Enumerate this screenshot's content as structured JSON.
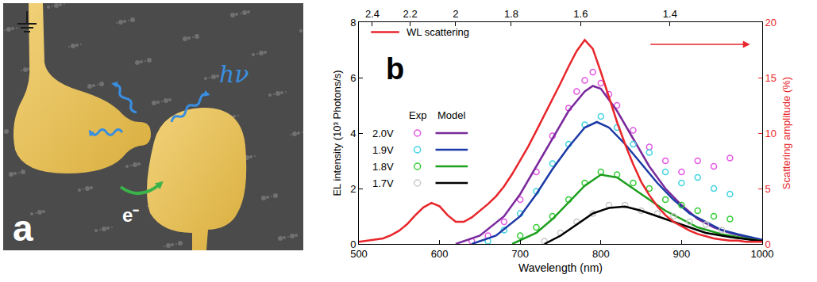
{
  "panel_a": {
    "label": "a",
    "photon_label": "hν",
    "electron_label": "e⁻"
  },
  "chart_data": {
    "type": "scatter",
    "label": "b",
    "x_label": "Wavelength (nm)",
    "y_label": "EL intensity (10³ Photons/s)",
    "y2_label": "Scattering amplitude (%)",
    "xlim": [
      500,
      1000
    ],
    "xticks": [
      500,
      600,
      700,
      800,
      900,
      1000
    ],
    "x2lim": [
      500,
      1000
    ],
    "x2ticks": [
      {
        "value": 516.7,
        "label": "2.4"
      },
      {
        "value": 563.6,
        "label": "2.2"
      },
      {
        "value": 620,
        "label": "2"
      },
      {
        "value": 688.9,
        "label": "1.8"
      },
      {
        "value": 775,
        "label": "1.6"
      },
      {
        "value": 885.7,
        "label": "1.4"
      }
    ],
    "ylim": [
      0,
      8
    ],
    "yticks": [
      0,
      2,
      4,
      6,
      8
    ],
    "y2lim": [
      0,
      20
    ],
    "y2ticks": [
      0,
      5,
      10,
      15,
      20
    ],
    "grid": false,
    "legend_columns": [
      "Exp",
      "Model"
    ],
    "series": [
      {
        "name": "WL scattering",
        "type": "line",
        "axis": "y2",
        "color": "#e8262b",
        "x": [
          500,
          510,
          520,
          530,
          540,
          550,
          560,
          570,
          580,
          590,
          600,
          610,
          620,
          630,
          640,
          650,
          660,
          670,
          680,
          690,
          700,
          710,
          720,
          730,
          740,
          750,
          760,
          770,
          780,
          790,
          800,
          810,
          820,
          830,
          840,
          850,
          860,
          870,
          880,
          890,
          900,
          910,
          920,
          930,
          940,
          950,
          960,
          970,
          980,
          990,
          1000
        ],
        "values": [
          0.2,
          0.3,
          0.4,
          0.5,
          0.8,
          1.2,
          1.8,
          2.6,
          3.3,
          3.7,
          3.4,
          2.6,
          2.0,
          2.0,
          2.4,
          3.0,
          3.6,
          4.3,
          5.2,
          6.3,
          7.5,
          8.8,
          10.2,
          11.6,
          13.0,
          14.5,
          16.0,
          17.4,
          18.4,
          17.6,
          15.5,
          13.2,
          11.0,
          9.0,
          7.2,
          5.6,
          4.4,
          3.4,
          2.6,
          2.0,
          1.6,
          1.2,
          0.9,
          0.7,
          0.5,
          0.4,
          0.3,
          0.3,
          0.2,
          0.2,
          0.2
        ]
      },
      {
        "name": "2.0V",
        "exp": {
          "color": "#e455e4",
          "marker": "open circle",
          "x": [
            640,
            660,
            680,
            700,
            720,
            740,
            760,
            770,
            780,
            790,
            800,
            810,
            820,
            840,
            860,
            880,
            900,
            920,
            940,
            960
          ],
          "values": [
            0.1,
            0.3,
            0.8,
            1.6,
            2.6,
            3.9,
            4.9,
            5.5,
            5.9,
            6.2,
            5.8,
            5.4,
            5.0,
            4.1,
            3.5,
            3.0,
            2.6,
            3.0,
            2.8,
            3.1
          ]
        },
        "model": {
          "color": "#7a2a9c",
          "line_style": "solid",
          "x": [
            620,
            650,
            680,
            700,
            720,
            740,
            760,
            780,
            790,
            800,
            820,
            840,
            860,
            880,
            900,
            920,
            940,
            960,
            980,
            1000
          ],
          "values": [
            0,
            0.3,
            1.0,
            1.8,
            2.8,
            3.8,
            4.8,
            5.5,
            5.7,
            5.6,
            4.8,
            3.8,
            2.8,
            2.0,
            1.4,
            0.9,
            0.6,
            0.4,
            0.25,
            0.15
          ]
        }
      },
      {
        "name": "1.9V",
        "exp": {
          "color": "#3fd3e0",
          "marker": "open circle",
          "x": [
            660,
            680,
            700,
            720,
            740,
            760,
            780,
            800,
            820,
            840,
            860,
            880,
            900,
            920,
            940,
            960
          ],
          "values": [
            0.1,
            0.5,
            1.1,
            1.9,
            2.9,
            3.6,
            4.3,
            4.6,
            4.2,
            3.6,
            3.3,
            2.6,
            2.2,
            2.4,
            2.0,
            1.8
          ]
        },
        "model": {
          "color": "#1c3aa6",
          "line_style": "solid",
          "x": [
            640,
            670,
            700,
            720,
            740,
            760,
            780,
            795,
            810,
            830,
            850,
            870,
            890,
            910,
            930,
            950,
            970,
            1000
          ],
          "values": [
            0,
            0.3,
            1.0,
            1.8,
            2.7,
            3.5,
            4.2,
            4.4,
            4.2,
            3.6,
            2.9,
            2.2,
            1.6,
            1.1,
            0.8,
            0.5,
            0.35,
            0.15
          ]
        }
      },
      {
        "name": "1.8V",
        "exp": {
          "color": "#33cc33",
          "marker": "open circle",
          "x": [
            700,
            720,
            740,
            760,
            780,
            800,
            820,
            840,
            860,
            880,
            900,
            920,
            940,
            960
          ],
          "values": [
            0.3,
            0.6,
            1.0,
            1.6,
            2.2,
            2.6,
            2.5,
            2.2,
            2.0,
            1.6,
            1.4,
            1.2,
            1.0,
            0.9
          ]
        },
        "model": {
          "color": "#1e9e1e",
          "line_style": "solid",
          "x": [
            690,
            720,
            740,
            760,
            780,
            800,
            820,
            840,
            860,
            880,
            900,
            920,
            950,
            1000
          ],
          "values": [
            0,
            0.4,
            0.9,
            1.5,
            2.1,
            2.5,
            2.4,
            2.0,
            1.6,
            1.2,
            0.9,
            0.6,
            0.35,
            0.1
          ]
        }
      },
      {
        "name": "1.7V",
        "exp": {
          "color": "#c8c8c8",
          "marker": "open circle",
          "x": [
            730,
            750,
            770,
            790,
            810,
            830,
            850,
            870,
            890,
            910,
            930,
            950
          ],
          "values": [
            0.1,
            0.4,
            0.8,
            1.1,
            1.4,
            1.4,
            1.2,
            1.1,
            1.0,
            0.8,
            0.7,
            0.5
          ]
        },
        "model": {
          "color": "#000000",
          "line_style": "solid",
          "x": [
            730,
            750,
            770,
            790,
            810,
            830,
            850,
            870,
            890,
            910,
            930,
            960,
            1000
          ],
          "values": [
            0,
            0.3,
            0.7,
            1.1,
            1.3,
            1.35,
            1.2,
            1.0,
            0.8,
            0.6,
            0.4,
            0.25,
            0.1
          ]
        }
      }
    ]
  }
}
